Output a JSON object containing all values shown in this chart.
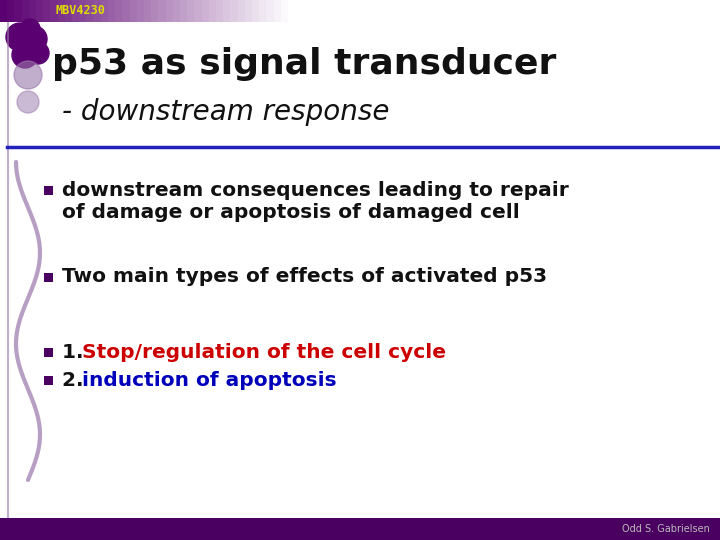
{
  "bg_color": "#ffffff",
  "header_label": "MBV4230",
  "header_color": "#dddd00",
  "header_bg_left": "#5a0070",
  "title_line1": "p53 as signal transducer",
  "title_line2": "- downstream response",
  "title_color": "#111111",
  "title2_color": "#111111",
  "separator_color": "#2222bb",
  "bullet_color": "#111111",
  "bullet_sq_color": "#4a0060",
  "bullet1_line1": "downstream consequences leading to repair",
  "bullet1_line2": "of damage or apoptosis of damaged cell",
  "bullet2": "Two main types of effects of activated p53",
  "bullet3_prefix": "1. ",
  "bullet3_text": "Stop/regulation of the cell cycle",
  "bullet3_text_color": "#cc0000",
  "bullet4_prefix": "2. ",
  "bullet4_text": "induction of apoptosis",
  "bullet4_text_color": "#0000bb",
  "bullet_prefix_color": "#111111",
  "left_deco_color": "#9977aa",
  "left_deco_dark": "#5a0070",
  "footer": "Odd S. Gabrielsen",
  "footer_color": "#bbbbbb",
  "footer_bg": "#4a0060"
}
